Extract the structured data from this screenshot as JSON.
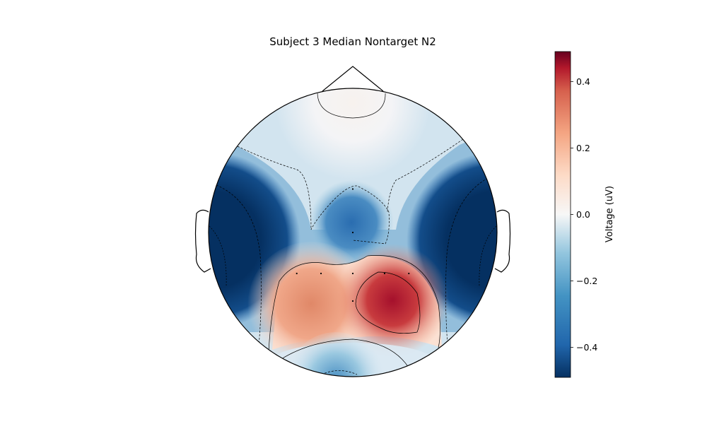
{
  "chart_data": {
    "type": "heatmap",
    "title": "Subject 3 Median Nontarget N2",
    "colorbar": {
      "label": "Voltage (uV)",
      "vmin": -0.49,
      "vmax": 0.49,
      "colormap": "RdBu_r",
      "ticks": [
        0.4,
        0.2,
        0.0,
        -0.2,
        -0.4
      ],
      "tick_labels": [
        "0.4",
        "0.2",
        "0.0",
        "−0.2",
        "−0.4"
      ]
    },
    "sensors": [
      {
        "x": 0.0,
        "y": 0.52,
        "value": -0.12
      },
      {
        "x": 0.0,
        "y": 0.0,
        "value": -0.38
      },
      {
        "x": -0.67,
        "y": -0.49,
        "value": -0.49
      },
      {
        "x": -0.38,
        "y": -0.49,
        "value": 0.24
      },
      {
        "x": 0.0,
        "y": -0.49,
        "value": 0.14
      },
      {
        "x": 0.38,
        "y": -0.49,
        "value": 0.46
      },
      {
        "x": 0.67,
        "y": -0.49,
        "value": -0.49
      },
      {
        "x": 0.0,
        "y": -0.82,
        "value": -0.05
      }
    ],
    "colors": {
      "deep_blue": "#053061",
      "blue": "#2166ac",
      "light_blue": "#92c5de",
      "white": "#f7f7f7",
      "light_red": "#f4a582",
      "red": "#b2182b",
      "deep_red": "#67001f"
    }
  }
}
